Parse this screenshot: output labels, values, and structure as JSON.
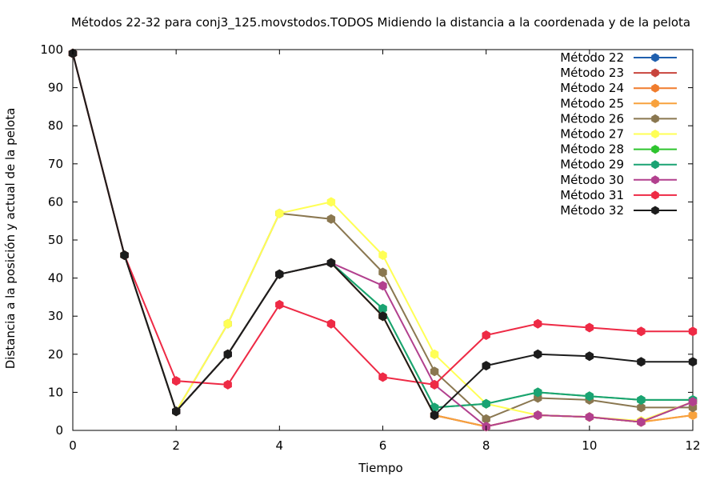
{
  "chart_data": {
    "type": "line",
    "title": "Métodos 22-32 para conj3_125.movstodos.TODOS Midiendo la distancia a la coordenada y de la pelota",
    "xlabel": "Tiempo",
    "ylabel": "Distancia a la posición y actual de la pelota",
    "xlim": [
      0,
      12
    ],
    "ylim": [
      0,
      100
    ],
    "xticks": [
      "0",
      "2",
      "4",
      "6",
      "8",
      "10",
      "12"
    ],
    "yticks": [
      "0",
      "10",
      "20",
      "30",
      "40",
      "50",
      "60",
      "70",
      "80",
      "90",
      "100"
    ],
    "grid": false,
    "legend_position": "top-right",
    "x": [
      0,
      1,
      2,
      3,
      4,
      5,
      6,
      7,
      8,
      9,
      10,
      11,
      12
    ],
    "series": [
      {
        "name": "Método 22",
        "color": "#1f5fae",
        "values": [
          99,
          46,
          5,
          20,
          41,
          44,
          30,
          4,
          1,
          4,
          3.5,
          2.2,
          7.5
        ]
      },
      {
        "name": "Método 23",
        "color": "#c8453d",
        "values": [
          99,
          46,
          5,
          20,
          41,
          44,
          30,
          4,
          1,
          4,
          3.5,
          2.2,
          7.5
        ]
      },
      {
        "name": "Método 24",
        "color": "#f07c2d",
        "values": [
          99,
          46,
          5,
          20,
          41,
          44,
          30,
          4,
          1,
          4,
          3.5,
          2.2,
          4
        ]
      },
      {
        "name": "Método 25",
        "color": "#f8a23d",
        "values": [
          99,
          46,
          5,
          20,
          41,
          44,
          30,
          4,
          1,
          4,
          3.5,
          2.2,
          4
        ]
      },
      {
        "name": "Método 26",
        "color": "#8a7750",
        "values": [
          99,
          46,
          5,
          28,
          57,
          55.5,
          41.5,
          15.5,
          3,
          8.5,
          8,
          6,
          6
        ]
      },
      {
        "name": "Método 27",
        "color": "#ffff55",
        "values": [
          99,
          46,
          5,
          28,
          57,
          60,
          46,
          20,
          7,
          4,
          3.5,
          2.5,
          7.5
        ]
      },
      {
        "name": "Método 28",
        "color": "#2ec42e",
        "values": [
          99,
          46,
          5,
          20,
          41,
          44,
          32,
          6,
          7,
          10,
          9,
          8,
          8
        ]
      },
      {
        "name": "Método 29",
        "color": "#1aa373",
        "values": [
          99,
          46,
          5,
          20,
          41,
          44,
          32,
          6,
          7,
          10,
          9,
          8,
          8
        ]
      },
      {
        "name": "Método 30",
        "color": "#b2408e",
        "values": [
          99,
          46,
          5,
          20,
          41,
          44,
          38,
          12,
          1,
          4,
          3.5,
          2.2,
          7.5
        ]
      },
      {
        "name": "Método 31",
        "color": "#ee2a45",
        "values": [
          99,
          46,
          13,
          12,
          33,
          28,
          14,
          12,
          25,
          28,
          27,
          26,
          26
        ]
      },
      {
        "name": "Método 32",
        "color": "#1c1c1c",
        "values": [
          99,
          46,
          5,
          20,
          41,
          44,
          30,
          4,
          17,
          20,
          19.5,
          18,
          18
        ]
      }
    ]
  }
}
